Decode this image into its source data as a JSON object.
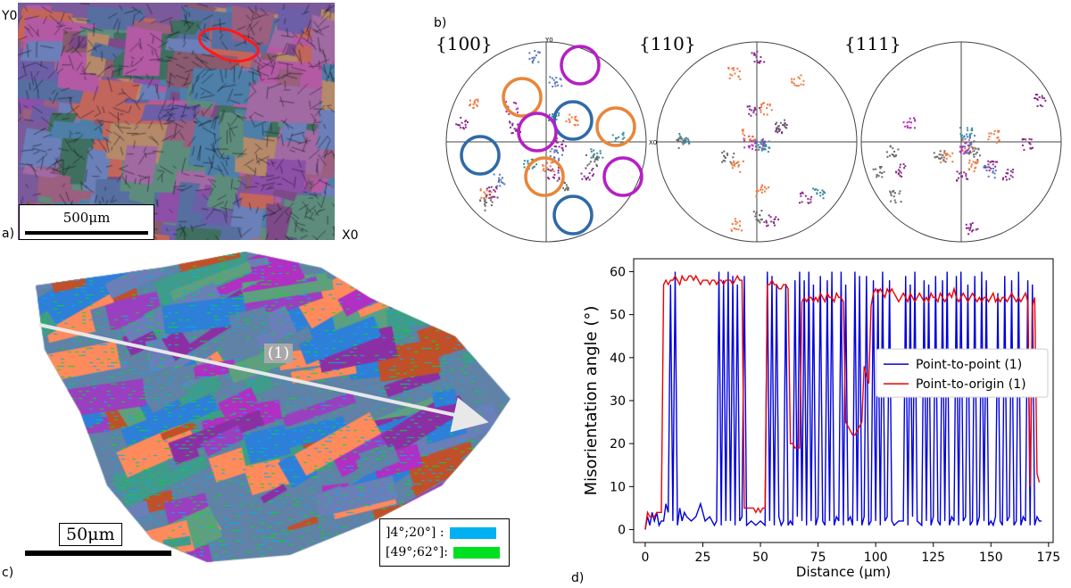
{
  "panels": {
    "a": {
      "label": "a)",
      "axis_y": "Y0",
      "axis_x": "X0",
      "scale_bar": "500μm",
      "colors": [
        "#8e4fa8",
        "#6d5ea8",
        "#b45aa5",
        "#566fa0",
        "#9b5f80",
        "#4d7fa8",
        "#7c4a86",
        "#a26aa3",
        "#5e8c7c",
        "#c2665c",
        "#6b7fb8",
        "#8a5a6f",
        "#3f6f5f",
        "#b48a6a"
      ]
    },
    "b": {
      "label": "b)",
      "pole_figures": [
        {
          "name": "{100}",
          "axis_y": "Y0",
          "axis_x": "X0"
        },
        {
          "name": "{110}"
        },
        {
          "name": "{111}"
        }
      ],
      "circle_colors": {
        "purple": "#b51fc4",
        "orange": "#e8863a",
        "blue": "#2f6aa8"
      }
    },
    "c": {
      "label": "c)",
      "scale_bar": "50μm",
      "line_label": "(1)",
      "legend": [
        {
          "label": "]4°;20°] :",
          "color": "#00b0f0"
        },
        {
          "label": "[49°;62°]:",
          "color": "#00e020"
        }
      ],
      "colors": [
        "#5f82a6",
        "#3f9c8a",
        "#9a3fc0",
        "#ff8a5c",
        "#6a7fb8",
        "#2d7fd8",
        "#b12fc2",
        "#5ea07e",
        "#8d2fa4",
        "#c0502a"
      ]
    },
    "d": {
      "label": "d)"
    }
  },
  "chart_data": {
    "type": "line",
    "title": "",
    "xlabel": "Distance (μm)",
    "ylabel": "Misorientation angle (°)",
    "xlim": [
      -5,
      177
    ],
    "ylim": [
      -3,
      63
    ],
    "xticks": [
      0,
      25,
      50,
      75,
      100,
      125,
      150,
      175
    ],
    "yticks": [
      0,
      10,
      20,
      30,
      40,
      50,
      60
    ],
    "grid": false,
    "legend_position": "center-right",
    "series": [
      {
        "name": "Point-to-point (1)",
        "color": "#0000dd",
        "x": [
          0,
          1,
          2,
          3,
          4,
          5,
          6,
          7,
          8,
          9,
          10,
          11,
          12,
          13,
          14,
          15,
          16,
          17,
          18,
          20,
          22,
          24,
          26,
          28,
          30,
          31,
          32,
          33,
          34,
          35,
          36,
          37,
          38,
          39,
          40,
          41,
          42,
          43,
          44,
          46,
          48,
          50,
          52,
          53,
          54,
          55,
          56,
          57,
          58,
          59,
          60,
          61,
          62,
          63,
          64,
          65,
          66,
          67,
          68,
          69,
          70,
          71,
          72,
          73,
          74,
          75,
          76,
          77,
          78,
          79,
          80,
          81,
          82,
          83,
          84,
          85,
          86,
          87,
          88,
          89,
          90,
          91,
          92,
          93,
          94,
          95,
          96,
          97,
          98,
          99,
          100,
          101,
          102,
          103,
          104,
          105,
          106,
          107,
          108,
          110,
          112,
          113,
          114,
          115,
          116,
          117,
          118,
          120,
          121,
          122,
          123,
          124,
          125,
          126,
          127,
          128,
          129,
          130,
          131,
          132,
          133,
          134,
          135,
          136,
          137,
          138,
          139,
          140,
          141,
          142,
          143,
          144,
          145,
          146,
          147,
          148,
          149,
          150,
          151,
          152,
          153,
          154,
          155,
          156,
          157,
          158,
          159,
          160,
          161,
          162,
          163,
          164,
          165,
          166,
          167,
          168,
          169,
          170,
          171,
          172
        ],
        "y": [
          0,
          3,
          1,
          4,
          2,
          4,
          1,
          2,
          2,
          6,
          4,
          57,
          2,
          60,
          1,
          5,
          2,
          4,
          3,
          2,
          3,
          6,
          2,
          3,
          1,
          2,
          60,
          1,
          58,
          2,
          60,
          2,
          59,
          1,
          57,
          2,
          3,
          59,
          1,
          2,
          1,
          2,
          1,
          60,
          2,
          59,
          1,
          57,
          3,
          1,
          2,
          57,
          1,
          2,
          1,
          58,
          3,
          60,
          2,
          58,
          1,
          60,
          2,
          57,
          1,
          3,
          59,
          2,
          1,
          58,
          2,
          60,
          1,
          3,
          2,
          60,
          1,
          57,
          2,
          3,
          1,
          60,
          2,
          59,
          1,
          3,
          59,
          1,
          2,
          58,
          2,
          56,
          1,
          60,
          2,
          3,
          58,
          2,
          1,
          2,
          2,
          59,
          1,
          57,
          3,
          60,
          2,
          1,
          58,
          2,
          57,
          1,
          3,
          59,
          2,
          1,
          58,
          2,
          60,
          1,
          3,
          2,
          59,
          1,
          60,
          2,
          3,
          57,
          1,
          2,
          59,
          1,
          3,
          60,
          2,
          58,
          1,
          2,
          1,
          3,
          55,
          2,
          1,
          59,
          2,
          3,
          58,
          1,
          2,
          60,
          1,
          3,
          2,
          58,
          1,
          57,
          1,
          3,
          2,
          2
        ]
      },
      {
        "name": "Point-to-origin (1)",
        "color": "#ee0000",
        "x": [
          0,
          1,
          2,
          3,
          4,
          5,
          6,
          7,
          8,
          9,
          10,
          11,
          12,
          13,
          14,
          15,
          16,
          17,
          18,
          19,
          20,
          21,
          22,
          23,
          24,
          25,
          26,
          27,
          28,
          29,
          30,
          31,
          32,
          33,
          34,
          35,
          36,
          37,
          38,
          39,
          40,
          41,
          42,
          43,
          44,
          45,
          46,
          47,
          48,
          49,
          50,
          51,
          52,
          53,
          54,
          55,
          56,
          57,
          58,
          59,
          60,
          61,
          62,
          63,
          64,
          65,
          66,
          67,
          68,
          69,
          70,
          71,
          72,
          73,
          74,
          75,
          76,
          77,
          78,
          79,
          80,
          81,
          82,
          83,
          84,
          85,
          86,
          87,
          88,
          89,
          90,
          91,
          92,
          93,
          94,
          95,
          96,
          97,
          98,
          99,
          100,
          101,
          102,
          103,
          104,
          105,
          106,
          107,
          108,
          109,
          110,
          111,
          112,
          113,
          114,
          115,
          116,
          117,
          118,
          119,
          120,
          121,
          122,
          123,
          124,
          125,
          126,
          127,
          128,
          129,
          130,
          131,
          132,
          133,
          134,
          135,
          136,
          137,
          138,
          139,
          140,
          141,
          142,
          143,
          144,
          145,
          146,
          147,
          148,
          149,
          150,
          151,
          152,
          153,
          154,
          155,
          156,
          157,
          158,
          159,
          160,
          161,
          162,
          163,
          164,
          165,
          166,
          167,
          168,
          169,
          170,
          171
        ],
        "y": [
          0,
          4,
          3,
          3,
          3,
          4,
          4,
          4,
          57,
          58,
          57,
          58,
          58,
          59,
          58,
          57,
          59,
          58,
          58,
          59,
          59,
          58,
          59,
          58,
          57,
          58,
          58,
          58,
          57,
          58,
          58,
          57,
          58,
          58,
          57,
          58,
          58,
          58,
          57,
          58,
          59,
          58,
          58,
          5,
          5,
          5,
          5,
          5,
          4,
          5,
          4,
          5,
          5,
          57,
          57,
          58,
          57,
          57,
          56,
          56,
          57,
          57,
          56,
          20,
          20,
          19,
          19,
          19,
          53,
          54,
          53,
          54,
          54,
          53,
          54,
          53,
          55,
          54,
          53,
          55,
          54,
          54,
          53,
          55,
          54,
          54,
          53,
          25,
          24,
          23,
          22,
          22,
          23,
          24,
          25,
          38,
          36,
          34,
          52,
          55,
          56,
          55,
          56,
          55,
          54,
          56,
          55,
          56,
          55,
          54,
          53,
          54,
          55,
          54,
          53,
          55,
          54,
          53,
          54,
          55,
          54,
          53,
          54,
          53,
          55,
          54,
          54,
          53,
          55,
          54,
          53,
          54,
          55,
          54,
          56,
          54,
          53,
          54,
          55,
          54,
          53,
          54,
          55,
          54,
          53,
          54,
          53,
          54,
          54,
          53,
          54,
          55,
          53,
          54,
          53,
          54,
          54,
          53,
          54,
          55,
          54,
          53,
          54,
          53,
          54,
          55,
          53,
          10,
          52,
          54,
          13,
          11
        ]
      }
    ]
  }
}
